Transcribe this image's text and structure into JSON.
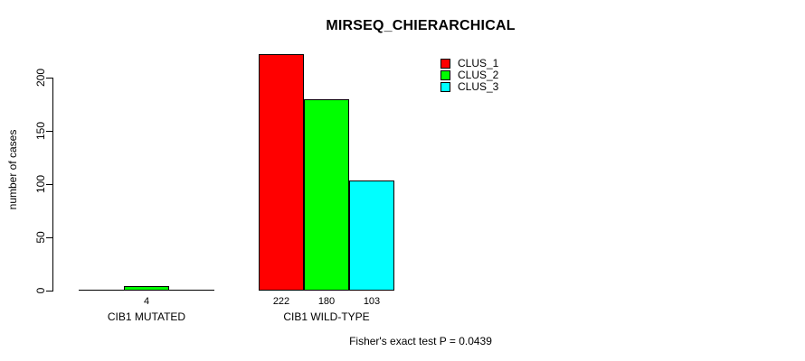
{
  "chart_data": {
    "type": "bar",
    "title": "MIRSEQ_CHIERARCHICAL",
    "ylabel": "number of cases",
    "footnote": "Fisher's exact test P = 0.0439",
    "categories": [
      "CIB1 MUTATED",
      "CIB1 WILD-TYPE"
    ],
    "series": [
      {
        "name": "CLUS_1",
        "color": "#ff0000",
        "values": [
          0,
          222
        ]
      },
      {
        "name": "CLUS_2",
        "color": "#00ff00",
        "values": [
          4,
          180
        ]
      },
      {
        "name": "CLUS_3",
        "color": "#00ffff",
        "values": [
          0,
          103
        ]
      }
    ],
    "bar_value_labels": [
      [
        "",
        "222"
      ],
      [
        "4",
        "180"
      ],
      [
        "",
        "103"
      ]
    ],
    "yticks": [
      0,
      50,
      100,
      150,
      200
    ],
    "ylim": [
      0,
      222
    ],
    "grid": false,
    "legend_position": "top-right",
    "colors": {
      "background": "#ffffff",
      "axis": "#000000",
      "text": "#000000"
    }
  }
}
